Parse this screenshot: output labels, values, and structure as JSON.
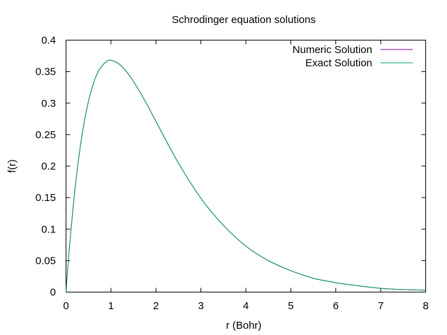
{
  "chart_data": {
    "type": "line",
    "title": "Schrodinger equation solutions",
    "xlabel": "r (Bohr)",
    "ylabel": "f(r)",
    "xlim": [
      0,
      8
    ],
    "ylim": [
      0,
      0.4
    ],
    "xticks": [
      "0",
      "1",
      "2",
      "3",
      "4",
      "5",
      "6",
      "7",
      "8"
    ],
    "yticks": [
      "0",
      "0.05",
      "0.1",
      "0.15",
      "0.2",
      "0.25",
      "0.3",
      "0.35",
      "0.4"
    ],
    "grid": false,
    "legend_position": "top-right",
    "series": [
      {
        "name": "Numeric Solution",
        "color": "#8b00ab",
        "x": [
          0,
          0.05,
          0.1,
          0.2,
          0.3,
          0.4,
          0.5,
          0.6,
          0.7,
          0.8,
          0.9,
          1.0,
          1.2,
          1.4,
          1.6,
          1.8,
          2.0,
          2.5,
          3.0,
          3.5,
          4.0,
          4.5,
          5.0,
          5.5,
          6.0,
          6.5,
          7.0,
          7.5,
          8.0
        ],
        "y": [
          0,
          0.048,
          0.09,
          0.164,
          0.222,
          0.268,
          0.303,
          0.329,
          0.348,
          0.359,
          0.366,
          0.368,
          0.361,
          0.345,
          0.323,
          0.298,
          0.271,
          0.205,
          0.149,
          0.106,
          0.073,
          0.05,
          0.034,
          0.022,
          0.015,
          0.01,
          0.006,
          0.004,
          0.003
        ]
      },
      {
        "name": "Exact Solution",
        "color": "#00a060",
        "x": [
          0,
          0.05,
          0.1,
          0.2,
          0.3,
          0.4,
          0.5,
          0.6,
          0.7,
          0.8,
          0.9,
          1.0,
          1.2,
          1.4,
          1.6,
          1.8,
          2.0,
          2.5,
          3.0,
          3.5,
          4.0,
          4.5,
          5.0,
          5.5,
          6.0,
          6.5,
          7.0,
          7.5,
          8.0
        ],
        "y": [
          0,
          0.048,
          0.09,
          0.164,
          0.222,
          0.268,
          0.303,
          0.329,
          0.348,
          0.359,
          0.366,
          0.368,
          0.361,
          0.345,
          0.323,
          0.298,
          0.271,
          0.205,
          0.149,
          0.106,
          0.073,
          0.05,
          0.034,
          0.022,
          0.015,
          0.01,
          0.006,
          0.004,
          0.003
        ]
      }
    ]
  }
}
